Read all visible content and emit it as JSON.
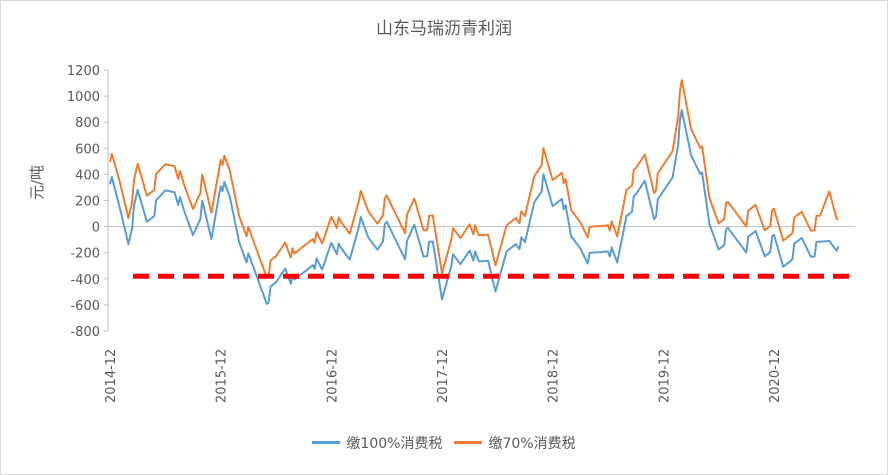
{
  "chart_data": {
    "type": "line",
    "title": "山东马瑞沥青利润",
    "ylabel": "元/吨",
    "xlabel": "",
    "ylim": [
      -800,
      1200
    ],
    "yticks": [
      -800,
      -600,
      -400,
      -200,
      0,
      200,
      400,
      600,
      800,
      1000,
      1200
    ],
    "xticks": [
      "2014-12",
      "2015-12",
      "2016-12",
      "2017-12",
      "2018-12",
      "2019-12",
      "2020-12"
    ],
    "x_range": [
      "2014-12",
      "2021-07"
    ],
    "reference_line": {
      "value": -380,
      "style": "dashed",
      "color": "#ff0000"
    },
    "series": [
      {
        "name": "缴100%消费税",
        "color": "#5b9bd5",
        "x": [
          "2014-12",
          "2015-01",
          "2015-02",
          "2015-03",
          "2015-04",
          "2015-05",
          "2015-06",
          "2015-07",
          "2015-08",
          "2015-09",
          "2015-10",
          "2015-11",
          "2015-12",
          "2016-01",
          "2016-02",
          "2016-03",
          "2016-04",
          "2016-05",
          "2016-06",
          "2016-07",
          "2016-08",
          "2016-09",
          "2016-10",
          "2016-11",
          "2016-12",
          "2017-01",
          "2017-02",
          "2017-03",
          "2017-04",
          "2017-05",
          "2017-06",
          "2017-07",
          "2017-08",
          "2017-09",
          "2017-10",
          "2017-11",
          "2017-12",
          "2018-01",
          "2018-02",
          "2018-03",
          "2018-04",
          "2018-05",
          "2018-06",
          "2018-07",
          "2018-08",
          "2018-09",
          "2018-10",
          "2018-11",
          "2018-12",
          "2019-01",
          "2019-02",
          "2019-03",
          "2019-04",
          "2019-05",
          "2019-06",
          "2019-07",
          "2019-08",
          "2019-09",
          "2019-10",
          "2019-11",
          "2019-12",
          "2020-01",
          "2020-02",
          "2020-03",
          "2020-04",
          "2020-05",
          "2020-06",
          "2020-07",
          "2020-08",
          "2020-09",
          "2020-10",
          "2020-11",
          "2020-12",
          "2021-01",
          "2021-02",
          "2021-03",
          "2021-04",
          "2021-05",
          "2021-06",
          "2021-07"
        ],
        "values": [
          380,
          150,
          -100,
          250,
          50,
          150,
          270,
          300,
          100,
          -50,
          150,
          -100,
          350,
          200,
          -100,
          -250,
          -400,
          -550,
          -450,
          -300,
          -450,
          -350,
          -250,
          -350,
          -100,
          -200,
          -250,
          50,
          -100,
          -150,
          0,
          -100,
          -200,
          0,
          -200,
          -150,
          -550,
          -250,
          -300,
          -150,
          -300,
          -250,
          -500,
          -200,
          -100,
          -150,
          200,
          350,
          150,
          250,
          -100,
          -150,
          -250,
          -200,
          -150,
          -300,
          100,
          200,
          350,
          100,
          250,
          400,
          850,
          550,
          450,
          0,
          -150,
          -50,
          -100,
          -150,
          -50,
          -200,
          -100,
          -300,
          -200,
          -100,
          -200,
          -150,
          -100,
          -150
        ]
      },
      {
        "name": "缴70%消费税",
        "color": "#ed7d31",
        "x": [
          "2014-12",
          "2015-01",
          "2015-02",
          "2015-03",
          "2015-04",
          "2015-05",
          "2015-06",
          "2015-07",
          "2015-08",
          "2015-09",
          "2015-10",
          "2015-11",
          "2015-12",
          "2016-01",
          "2016-02",
          "2016-03",
          "2016-04",
          "2016-05",
          "2016-06",
          "2016-07",
          "2016-08",
          "2016-09",
          "2016-10",
          "2016-11",
          "2016-12",
          "2017-01",
          "2017-02",
          "2017-03",
          "2017-04",
          "2017-05",
          "2017-06",
          "2017-07",
          "2017-08",
          "2017-09",
          "2017-10",
          "2017-11",
          "2017-12",
          "2018-01",
          "2018-02",
          "2018-03",
          "2018-04",
          "2018-05",
          "2018-06",
          "2018-07",
          "2018-08",
          "2018-09",
          "2018-10",
          "2018-11",
          "2018-12",
          "2019-01",
          "2019-02",
          "2019-03",
          "2019-04",
          "2019-05",
          "2019-06",
          "2019-07",
          "2019-08",
          "2019-09",
          "2019-10",
          "2019-11",
          "2019-12",
          "2020-01",
          "2020-02",
          "2020-03",
          "2020-04",
          "2020-05",
          "2020-06",
          "2020-07",
          "2020-08",
          "2020-09",
          "2020-10",
          "2020-11",
          "2020-12",
          "2021-01",
          "2021-02",
          "2021-03",
          "2021-04",
          "2021-05",
          "2021-06",
          "2021-07"
        ],
        "values": [
          550,
          350,
          100,
          450,
          250,
          350,
          470,
          500,
          300,
          150,
          350,
          100,
          550,
          400,
          100,
          -50,
          -200,
          -350,
          -250,
          -100,
          -250,
          -150,
          -50,
          -150,
          100,
          0,
          -50,
          250,
          100,
          50,
          200,
          100,
          0,
          200,
          0,
          50,
          -350,
          -50,
          -100,
          50,
          -100,
          -50,
          -300,
          0,
          100,
          50,
          400,
          550,
          350,
          450,
          100,
          50,
          -50,
          0,
          50,
          -100,
          300,
          400,
          550,
          300,
          450,
          600,
          1080,
          750,
          650,
          200,
          50,
          150,
          100,
          50,
          150,
          0,
          100,
          -100,
          0,
          100,
          0,
          50,
          280,
          60
        ]
      }
    ]
  }
}
